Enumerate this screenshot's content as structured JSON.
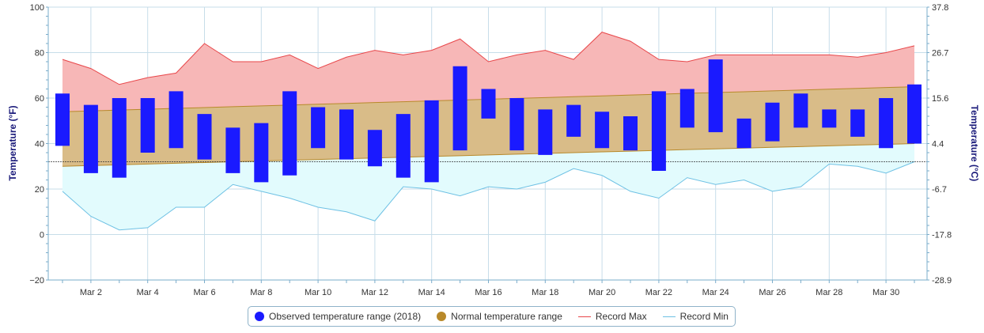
{
  "chart_data": {
    "type": "bar",
    "title": "",
    "x_tick_labels": [
      "Mar 2",
      "Mar 4",
      "Mar 6",
      "Mar 8",
      "Mar 10",
      "Mar 12",
      "Mar 14",
      "Mar 16",
      "Mar 18",
      "Mar 20",
      "Mar 22",
      "Mar 24",
      "Mar 26",
      "Mar 28",
      "Mar 30"
    ],
    "x_tick_days": [
      2,
      4,
      6,
      8,
      10,
      12,
      14,
      16,
      18,
      20,
      22,
      24,
      26,
      28,
      30
    ],
    "days": [
      1,
      2,
      3,
      4,
      5,
      6,
      7,
      8,
      9,
      10,
      11,
      12,
      13,
      14,
      15,
      16,
      17,
      18,
      19,
      20,
      21,
      22,
      23,
      24,
      25,
      26,
      27,
      28,
      29,
      30,
      31
    ],
    "ylabel_left": "Temperature (°F)",
    "ylabel_right": "Temperature (°C)",
    "ylim": [
      -20,
      100
    ],
    "y_ticks_left": [
      "−20",
      "0",
      "20",
      "40",
      "60",
      "80",
      "100"
    ],
    "y_tick_values": [
      -20,
      0,
      20,
      40,
      60,
      80,
      100
    ],
    "y_ticks_right": [
      "-28.9",
      "-17.8",
      "-6.7",
      "4.4",
      "15.6",
      "26.7",
      "37.8"
    ],
    "grid": true,
    "reference_line": 32,
    "observed": {
      "name": "Observed temperature range (2018)",
      "color": "#1a1aff",
      "low": [
        39,
        27,
        25,
        36,
        38,
        33,
        27,
        23,
        26,
        38,
        33,
        30,
        25,
        23,
        37,
        51,
        37,
        35,
        43,
        38,
        37,
        28,
        47,
        45,
        38,
        41,
        47,
        47,
        43,
        38,
        40
      ],
      "high": [
        62,
        57,
        60,
        60,
        63,
        53,
        47,
        49,
        63,
        56,
        55,
        46,
        53,
        59,
        74,
        64,
        60,
        55,
        57,
        54,
        52,
        63,
        64,
        77,
        51,
        58,
        62,
        55,
        55,
        60,
        66
      ]
    },
    "normal": {
      "name": "Normal temperature range",
      "color": "#b8892a",
      "low_start": 30,
      "low_end": 40,
      "high_start": 54,
      "high_end": 65
    },
    "record_max": {
      "name": "Record Max",
      "color": "#e8474a",
      "values": [
        77,
        73,
        66,
        69,
        71,
        84,
        76,
        76,
        79,
        73,
        78,
        81,
        79,
        81,
        86,
        76,
        79,
        81,
        77,
        89,
        85,
        77,
        76,
        79,
        79,
        79,
        79,
        79,
        78,
        80,
        83
      ]
    },
    "record_min": {
      "name": "Record Min",
      "color": "#6ec1e4",
      "values": [
        19,
        8,
        2,
        3,
        12,
        12,
        22,
        19,
        16,
        12,
        10,
        6,
        21,
        20,
        17,
        21,
        20,
        23,
        29,
        26,
        19,
        16,
        25,
        22,
        24,
        19,
        21,
        31,
        30,
        27,
        32
      ]
    }
  }
}
